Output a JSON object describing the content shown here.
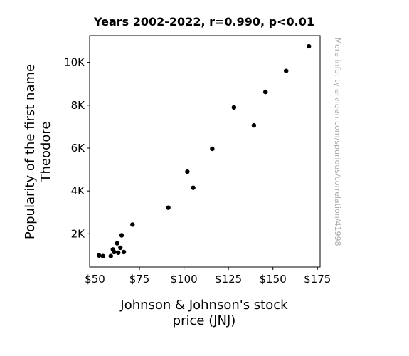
{
  "chart_data": {
    "type": "scatter",
    "title": "Years 2002-2022, r=0.990, p<0.01",
    "xlabel_lines": [
      "Johnson & Johnson's stock",
      "price (JNJ)"
    ],
    "ylabel_lines": [
      "Popularity of the first name",
      "Theodore"
    ],
    "xlim": [
      47.0,
      176.5
    ],
    "ylim": [
      450,
      11250
    ],
    "x_ticks": [
      {
        "value": 50,
        "label": "$50"
      },
      {
        "value": 75,
        "label": "$75"
      },
      {
        "value": 100,
        "label": "$100"
      },
      {
        "value": 125,
        "label": "$125"
      },
      {
        "value": 150,
        "label": "$150"
      },
      {
        "value": 175,
        "label": "$175"
      }
    ],
    "y_ticks": [
      {
        "value": 2000,
        "label": "2K"
      },
      {
        "value": 4000,
        "label": "4K"
      },
      {
        "value": 6000,
        "label": "6K"
      },
      {
        "value": 8000,
        "label": "8K"
      },
      {
        "value": 10000,
        "label": "10K"
      }
    ],
    "grid": false,
    "point_color": "#000000",
    "points": [
      {
        "x": 52.3,
        "y": 990
      },
      {
        "x": 54.5,
        "y": 960
      },
      {
        "x": 58.9,
        "y": 960
      },
      {
        "x": 60.1,
        "y": 1270
      },
      {
        "x": 60.8,
        "y": 1150
      },
      {
        "x": 62.5,
        "y": 1560
      },
      {
        "x": 63.1,
        "y": 1120
      },
      {
        "x": 64.3,
        "y": 1350
      },
      {
        "x": 65.0,
        "y": 1930
      },
      {
        "x": 66.2,
        "y": 1150
      },
      {
        "x": 71.1,
        "y": 2430
      },
      {
        "x": 91.2,
        "y": 3220
      },
      {
        "x": 101.9,
        "y": 4900
      },
      {
        "x": 105.2,
        "y": 4150
      },
      {
        "x": 115.9,
        "y": 5970
      },
      {
        "x": 128.1,
        "y": 7900
      },
      {
        "x": 139.3,
        "y": 7060
      },
      {
        "x": 145.8,
        "y": 8620
      },
      {
        "x": 157.4,
        "y": 9600
      },
      {
        "x": 170.2,
        "y": 10750
      }
    ]
  },
  "side_note": "More info: tylervigen.com/spurious/correlation/41998"
}
